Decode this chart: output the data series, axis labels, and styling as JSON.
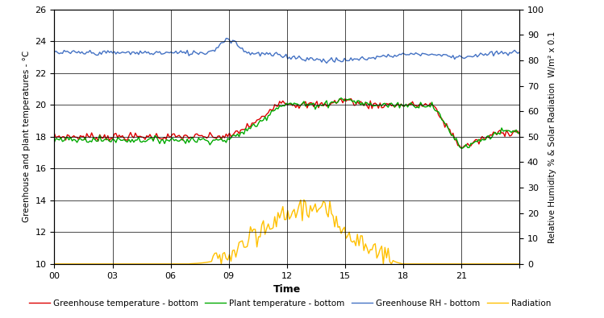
{
  "title": "",
  "xlabel": "Time",
  "ylabel_left": "Greenhouse and plant temperatures - °C",
  "ylabel_right": "Relative Humidity % & Solar Radiation  W/m² x 0.1",
  "xlim": [
    0,
    24
  ],
  "ylim_left": [
    10,
    26
  ],
  "ylim_right": [
    0,
    100
  ],
  "xticks": [
    0,
    3,
    6,
    9,
    12,
    15,
    18,
    21,
    24
  ],
  "xticklabels": [
    "00",
    "03",
    "06",
    "09",
    "12",
    "15",
    "18",
    "21",
    ""
  ],
  "yticks_left": [
    10,
    12,
    14,
    16,
    18,
    20,
    22,
    24,
    26
  ],
  "yticks_right": [
    0,
    10,
    20,
    30,
    40,
    50,
    60,
    70,
    80,
    90,
    100
  ],
  "legend": [
    {
      "label": "Greenhouse temperature - bottom",
      "color": "#dd0000",
      "lw": 1.0
    },
    {
      "label": "Plant temperature - bottom",
      "color": "#00aa00",
      "lw": 1.0
    },
    {
      "label": "Greenhouse RH - bottom",
      "color": "#4472c4",
      "lw": 1.0
    },
    {
      "label": "Radiation",
      "color": "#ffc000",
      "lw": 1.0
    }
  ],
  "background_color": "#ffffff",
  "n_points": 288
}
